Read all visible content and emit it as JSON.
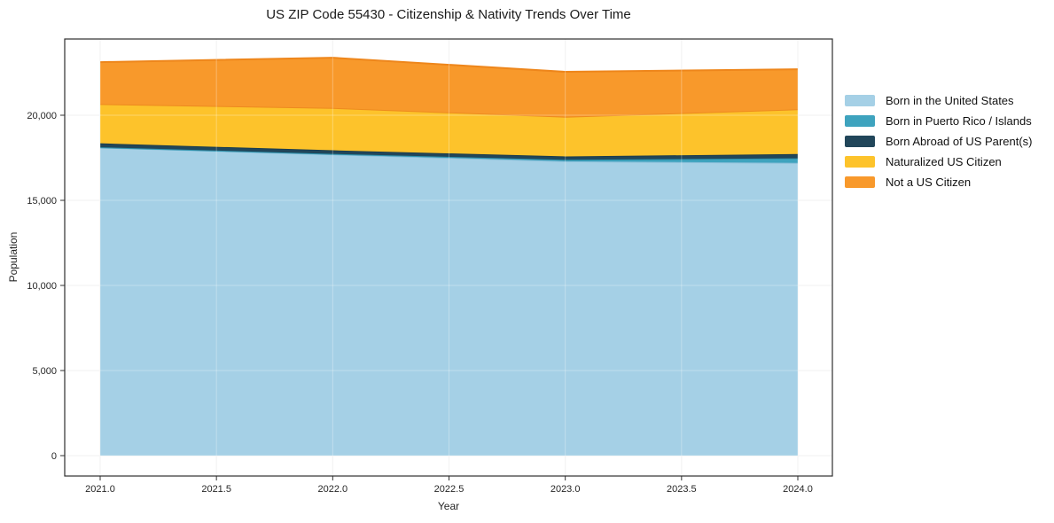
{
  "figure": {
    "title": "US ZIP Code 55430 - Citizenship & Nativity Trends Over Time",
    "xlabel": "Year",
    "ylabel": "Population"
  },
  "chart_data": {
    "type": "area",
    "stacked": true,
    "title": "US ZIP Code 55430 - Citizenship & Nativity Trends Over Time",
    "xlabel": "Year",
    "ylabel": "Population",
    "x": [
      2021,
      2022,
      2023,
      2024
    ],
    "series": [
      {
        "name": "Born in the United States",
        "values": [
          18100,
          17700,
          17300,
          17200
        ],
        "fill": "#A5D0E6",
        "stroke": "#86BDD8"
      },
      {
        "name": "Born in Puerto Rico / Islands",
        "values": [
          20,
          30,
          80,
          270
        ],
        "fill": "#3EA3BE",
        "stroke": "#2F93AD"
      },
      {
        "name": "Born Abroad of US Parent(s)",
        "values": [
          230,
          210,
          200,
          250
        ],
        "fill": "#21465A",
        "stroke": "#1B3C4E"
      },
      {
        "name": "Naturalized US Citizen",
        "values": [
          2310,
          2490,
          2330,
          2630
        ],
        "fill": "#FDC32B",
        "stroke": "#ED8A1E"
      },
      {
        "name": "Not a US Citizen",
        "values": [
          2460,
          2950,
          2640,
          2350
        ],
        "fill": "#F8992B",
        "stroke": "#EE861B"
      }
    ],
    "totals": [
      23120,
      23380,
      22550,
      22700
    ],
    "xticks": [
      "2021.0",
      "2021.5",
      "2022.0",
      "2022.5",
      "2023.0",
      "2023.5",
      "2024.0"
    ],
    "xtick_values": [
      2021,
      2021.5,
      2022,
      2022.5,
      2023,
      2023.5,
      2024
    ],
    "yticks": [
      "0",
      "5,000",
      "10,000",
      "15,000",
      "20,000"
    ],
    "ytick_values": [
      0,
      5000,
      10000,
      15000,
      20000
    ],
    "xlim": [
      2020.85,
      2024.15
    ],
    "ylim": [
      -1200,
      24480
    ],
    "grid": true,
    "legend_position": "right-outside",
    "colors": {
      "grid": "#ECECEC",
      "axis_border": "#2E2E2E",
      "tick": "#333333",
      "tick_label": "#262626",
      "background": "#FFFFFF"
    }
  }
}
